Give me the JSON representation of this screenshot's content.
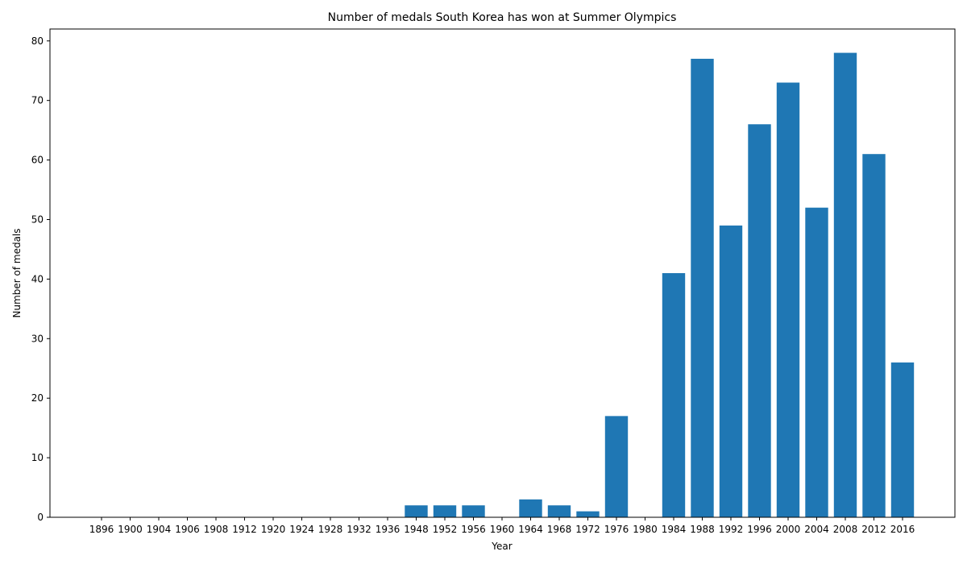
{
  "chart_data": {
    "type": "bar",
    "title": "Number of medals South Korea has won at Summer Olympics",
    "xlabel": "Year",
    "ylabel": "Number of medals",
    "categories": [
      "1896",
      "1900",
      "1904",
      "1906",
      "1908",
      "1912",
      "1920",
      "1924",
      "1928",
      "1932",
      "1936",
      "1948",
      "1952",
      "1956",
      "1960",
      "1964",
      "1968",
      "1972",
      "1976",
      "1980",
      "1984",
      "1988",
      "1992",
      "1996",
      "2000",
      "2004",
      "2008",
      "2012",
      "2016"
    ],
    "values": [
      0,
      0,
      0,
      0,
      0,
      0,
      0,
      0,
      0,
      0,
      0,
      2,
      2,
      2,
      0,
      3,
      2,
      1,
      17,
      0,
      41,
      77,
      49,
      66,
      73,
      52,
      78,
      61,
      26
    ],
    "ylim": [
      0,
      82
    ],
    "yticks": [
      0,
      10,
      20,
      30,
      40,
      50,
      60,
      70,
      80
    ],
    "grid": false,
    "bar_color": "#1f77b4"
  }
}
